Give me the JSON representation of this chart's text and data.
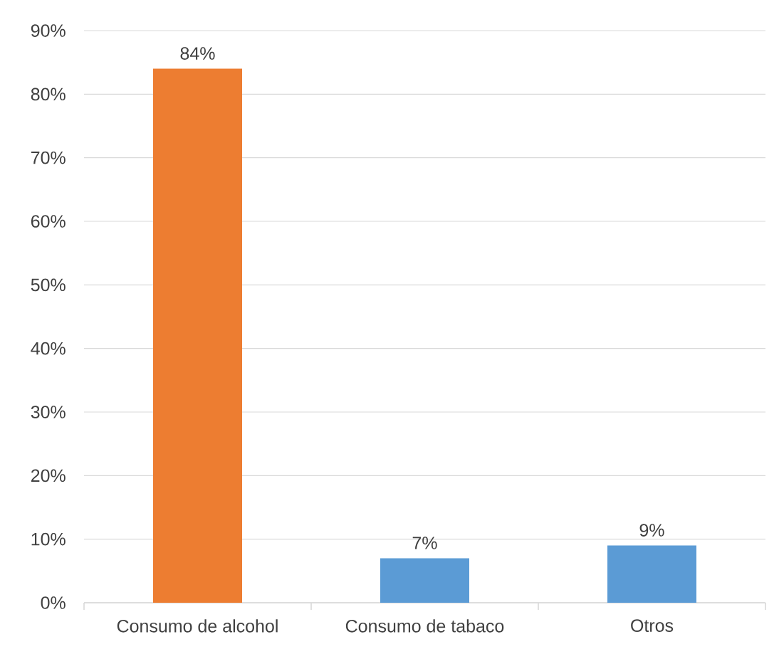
{
  "chart_data": {
    "type": "bar",
    "categories": [
      "Consumo de alcohol",
      "Consumo de tabaco",
      "Otros"
    ],
    "values": [
      84,
      7,
      9
    ],
    "value_labels": [
      "84%",
      "7%",
      "9%"
    ],
    "colors": [
      "#ed7d31",
      "#5b9bd5",
      "#5b9bd5"
    ],
    "ylim": [
      0,
      90
    ],
    "yticks": [
      {
        "value": 0,
        "label": "0%"
      },
      {
        "value": 10,
        "label": "10%"
      },
      {
        "value": 20,
        "label": "20%"
      },
      {
        "value": 30,
        "label": "30%"
      },
      {
        "value": 40,
        "label": "40%"
      },
      {
        "value": 50,
        "label": "50%"
      },
      {
        "value": 60,
        "label": "60%"
      },
      {
        "value": 70,
        "label": "70%"
      },
      {
        "value": 80,
        "label": "80%"
      },
      {
        "value": 90,
        "label": "90%"
      }
    ],
    "grid": "y"
  }
}
